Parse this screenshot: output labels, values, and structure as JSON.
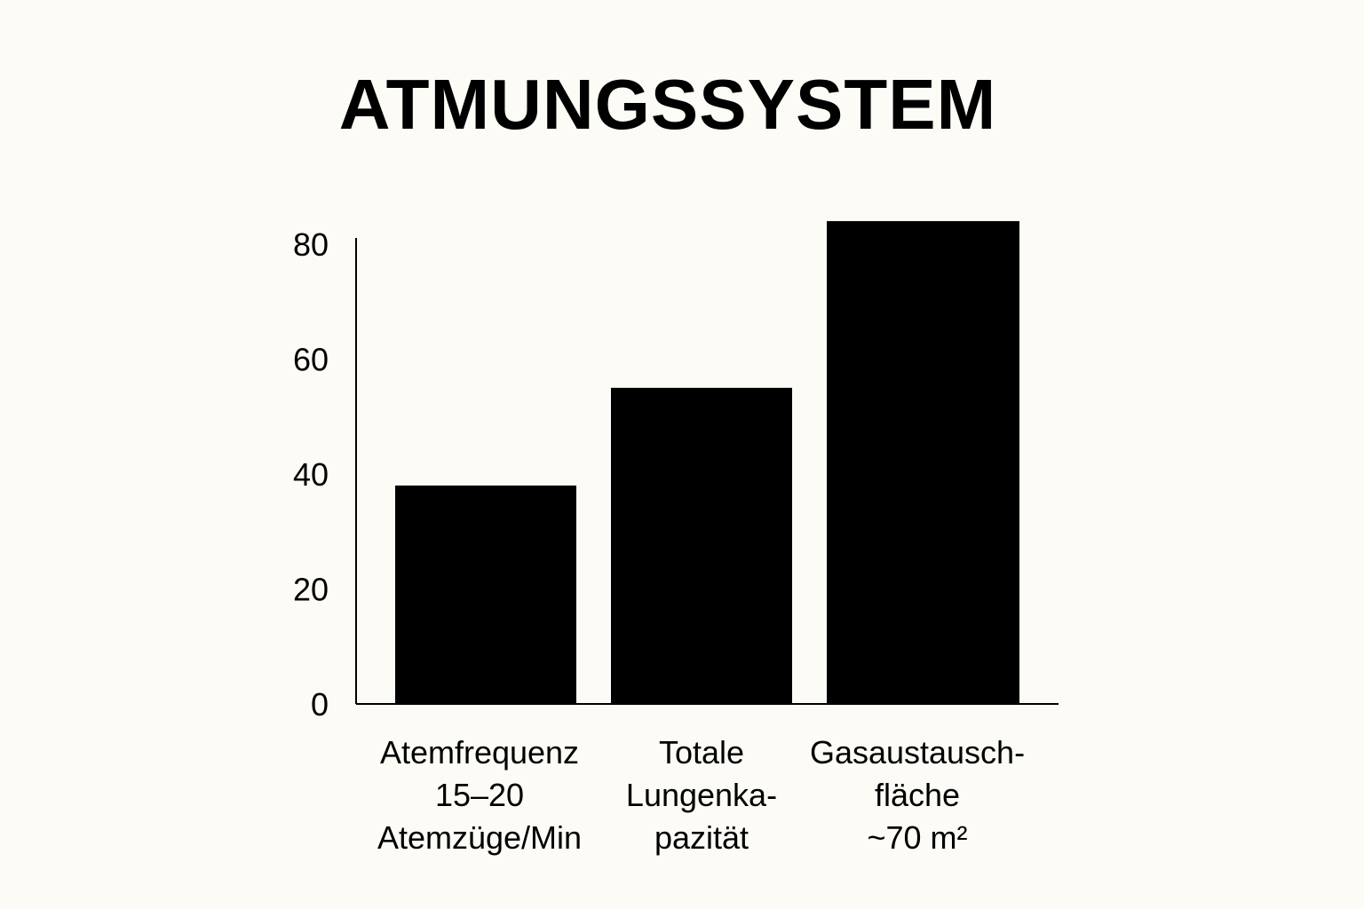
{
  "chart_data": {
    "type": "bar",
    "title": "ATMUNGSSYSTEM",
    "categories": [
      [
        "Atemfrequenz",
        "15–20",
        "Atemzüge/Min"
      ],
      [
        "Totale",
        "Lungenka-",
        "pazität"
      ],
      [
        "Gasaustausch-",
        "fläche",
        "~70 m²"
      ]
    ],
    "values": [
      38,
      55,
      84
    ],
    "yticks": [
      0,
      20,
      40,
      60,
      80
    ],
    "ylim": [
      0,
      80
    ],
    "xlabel": "",
    "ylabel": "",
    "grid": false,
    "bar_color": "#000000"
  }
}
